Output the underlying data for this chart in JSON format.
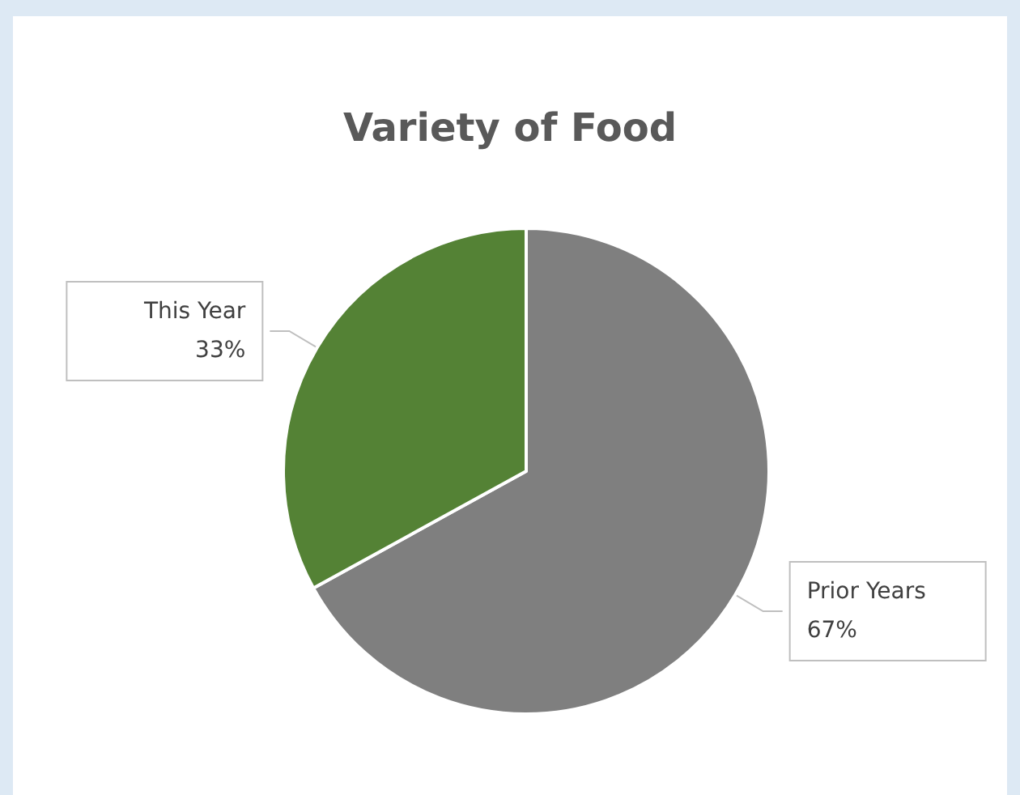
{
  "chart_data": {
    "type": "pie",
    "title": "Variety of Food",
    "categories": [
      "Prior Years",
      "This Year"
    ],
    "values": [
      67,
      33
    ],
    "colors": [
      "#7f7f7f",
      "#548235"
    ],
    "value_labels": [
      "67%",
      "33%"
    ],
    "legend": false
  }
}
